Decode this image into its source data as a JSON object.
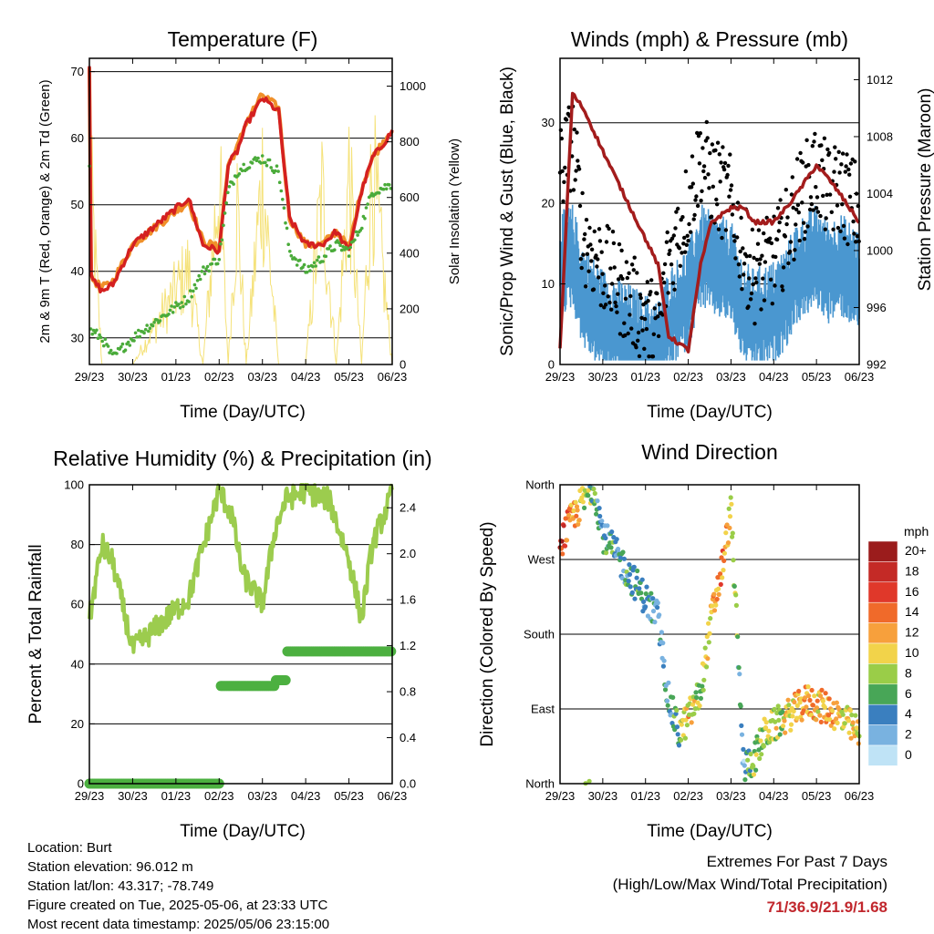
{
  "ticks_x": [
    "29/23",
    "30/23",
    "01/23",
    "02/23",
    "03/23",
    "04/23",
    "05/23",
    "06/23"
  ],
  "panels": {
    "temperature": {
      "title": "Temperature (F)",
      "ylabel_left": "2m & 9m T (Red, Orange) & 2m Td (Green)",
      "ylabel_right": "Solar Insolation (Yellow)",
      "xlabel": "Time (Day/UTC)",
      "ticks_left": [
        "30",
        "40",
        "50",
        "60",
        "70"
      ],
      "ticks_right": [
        "0",
        "200",
        "400",
        "600",
        "800",
        "1000"
      ]
    },
    "winds": {
      "title": "Winds (mph) & Pressure (mb)",
      "ylabel_left": "Sonic/Prop Wind & Gust (Blue, Black)",
      "ylabel_right": "Station Pressure (Maroon)",
      "xlabel": "Time (Day/UTC)",
      "ticks_left": [
        "0",
        "10",
        "20",
        "30"
      ],
      "ticks_right": [
        "992",
        "996",
        "1000",
        "1004",
        "1008",
        "1012"
      ]
    },
    "humidity": {
      "title": "Relative Humidity (%) & Precipitation (in)",
      "ylabel_left": "Percent & Total Rainfall",
      "xlabel": "Time (Day/UTC)",
      "ticks_left": [
        "0",
        "20",
        "40",
        "60",
        "80",
        "100"
      ],
      "ticks_right": [
        "0.0",
        "0.4",
        "0.8",
        "1.2",
        "1.6",
        "2.0",
        "2.4"
      ]
    },
    "direction": {
      "title": "Wind Direction",
      "ylabel_left": "Direction (Colored By Speed)",
      "xlabel": "Time (Day/UTC)",
      "ticks_left": [
        "North",
        "East",
        "South",
        "West",
        "North"
      ],
      "legend_title": "mph",
      "legend_labels": [
        "20+",
        "18",
        "16",
        "14",
        "12",
        "10",
        "8",
        "6",
        "4",
        "2",
        "0"
      ],
      "legend_colors": [
        "#9b1c1c",
        "#c42a26",
        "#e0382a",
        "#f06a2a",
        "#f7a03c",
        "#f2d34a",
        "#9acd48",
        "#48a657",
        "#3a7fbf",
        "#79b2e0",
        "#bfe3f6"
      ]
    }
  },
  "info": {
    "location": "Location: Burt",
    "elevation": "Station elevation: 96.012 m",
    "latlon": "Station lat/lon: 43.317; -78.749",
    "created": "Figure created on Tue, 2025-05-06, at 23:33 UTC",
    "recent": "Most recent data timestamp: 2025/05/06 23:15:00"
  },
  "extremes": {
    "line1": "Extremes For Past 7 Days",
    "line2": "(High/Low/Max Wind/Total Precipitation)",
    "values": "71/36.9/21.9/1.68"
  },
  "colors": {
    "temp2m": "#d42020",
    "temp9m": "#f0902a",
    "dewpoint": "#4aab3a",
    "solar": "#f5e27a",
    "gust": "#000000",
    "wind": "#4a97d0",
    "pressure": "#a31c1c",
    "rh": "#9ccc4e",
    "precip": "#4cb040"
  },
  "chart_data": [
    {
      "type": "line",
      "title": "Temperature (F)",
      "xlabel": "Time (Day/UTC)",
      "ylabel": "2m & 9m T (Red, Orange) & 2m Td (Green)",
      "ylabel_right": "Solar Insolation (Yellow)",
      "x": [
        "29/23",
        "29/09",
        "29/16",
        "30/00",
        "30/06",
        "30/12",
        "30/23",
        "01/06",
        "01/14",
        "01/23",
        "02/04",
        "02/09",
        "02/14",
        "02/23",
        "03/08",
        "03/14",
        "03/23",
        "04/08",
        "04/16",
        "04/23",
        "05/06",
        "05/12",
        "05/23",
        "06/06",
        "06/12",
        "06/23"
      ],
      "ylim": [
        26,
        72
      ],
      "ylim_right": [
        0,
        1100
      ],
      "series": [
        {
          "name": "2m T",
          "values": [
            71,
            60,
            45,
            39,
            37,
            38,
            44,
            51,
            44,
            43,
            56,
            58,
            62,
            66,
            64,
            48,
            44,
            44,
            46,
            43,
            52,
            57,
            61,
            62,
            55,
            59
          ]
        },
        {
          "name": "9m T",
          "values": [
            71,
            60,
            45,
            39,
            37.5,
            38.5,
            44,
            50.5,
            44.5,
            43.5,
            56,
            58.5,
            62.5,
            66.5,
            64.5,
            48,
            44,
            44,
            46,
            43.5,
            52.5,
            57,
            61.5,
            62.5,
            56,
            59
          ]
        },
        {
          "name": "2m Td",
          "values": [
            56,
            42,
            35,
            31,
            30,
            27,
            30,
            36,
            40,
            42,
            52,
            55,
            56,
            57,
            55,
            43,
            40,
            42,
            44,
            43,
            47,
            52,
            53,
            55,
            50,
            50
          ]
        },
        {
          "name": "Solar",
          "values": [
            0,
            1000,
            0,
            900,
            0,
            0,
            0,
            500,
            0,
            1000,
            0,
            850,
            0,
            1000,
            0,
            0,
            0,
            900,
            0,
            1000,
            0,
            1050,
            0,
            1100,
            0,
            950
          ]
        }
      ]
    },
    {
      "type": "scatter",
      "title": "Winds (mph) & Pressure (mb)",
      "xlabel": "Time (Day/UTC)",
      "ylabel": "Sonic/Prop Wind & Gust (Blue, Black)",
      "ylabel_right": "Station Pressure (Maroon)",
      "x": [
        "29/23",
        "30/06",
        "30/12",
        "30/23",
        "01/06",
        "01/12",
        "01/23",
        "02/06",
        "02/12",
        "02/23",
        "03/06",
        "03/12",
        "03/23",
        "04/06",
        "04/12",
        "04/23",
        "05/06",
        "05/12",
        "05/23",
        "06/06",
        "06/12",
        "06/23"
      ],
      "ylim": [
        0,
        38
      ],
      "ylim_right": [
        992,
        1013.5
      ],
      "series": [
        {
          "name": "Gust",
          "values": [
            26,
            30,
            18,
            14,
            6,
            15,
            22,
            28,
            25,
            22,
            16,
            13,
            15,
            18,
            22,
            26,
            23,
            24,
            21,
            16,
            14,
            9
          ]
        },
        {
          "name": "Wind",
          "values": [
            14,
            15,
            10,
            7,
            3,
            7,
            10,
            15,
            14,
            13,
            8,
            7,
            8,
            10,
            13,
            15,
            13,
            14,
            12,
            8,
            7,
            5
          ]
        },
        {
          "name": "Pressure",
          "values": [
            993,
            1011,
            1010,
            1007,
            999,
            994,
            993,
            999,
            1002,
            1003,
            1003,
            1002,
            1002,
            1003,
            1004,
            1006,
            1005,
            1004,
            1002,
            1002,
            1000,
            1000
          ]
        }
      ]
    },
    {
      "type": "line",
      "title": "Relative Humidity (%) & Precipitation (in)",
      "xlabel": "Time (Day/UTC)",
      "ylabel": "Percent & Total Rainfall",
      "x": [
        "29/23",
        "30/06",
        "30/12",
        "30/23",
        "01/06",
        "01/12",
        "01/23",
        "02/06",
        "02/12",
        "02/23",
        "03/06",
        "03/12",
        "03/23",
        "04/06",
        "04/12",
        "04/23",
        "05/06",
        "05/12",
        "05/23",
        "06/06",
        "06/12",
        "06/23"
      ],
      "ylim": [
        0,
        100
      ],
      "ylim_right": [
        0,
        2.6
      ],
      "series": [
        {
          "name": "RH",
          "values": [
            55,
            80,
            74,
            45,
            62,
            75,
            98,
            90,
            70,
            60,
            85,
            95,
            98,
            96,
            95,
            75,
            55,
            80,
            97,
            98,
            60,
            72
          ]
        },
        {
          "name": "Precipitation",
          "values": [
            0,
            0,
            0,
            0,
            0,
            0,
            0.85,
            0.85,
            0.85,
            0.85,
            0.9,
            1.15,
            1.15,
            1.15,
            1.15,
            1.15,
            1.15,
            1.15,
            1.6,
            1.68,
            1.68,
            1.68
          ]
        }
      ]
    },
    {
      "type": "scatter",
      "title": "Wind Direction",
      "xlabel": "Time (Day/UTC)",
      "ylabel": "Direction (Colored By Speed)",
      "categories_y": [
        "North",
        "East",
        "South",
        "West",
        "North"
      ],
      "x": [
        "29/23",
        "30/06",
        "30/12",
        "30/18",
        "30/23",
        "01/06",
        "01/12",
        "01/18",
        "01/23",
        "02/06",
        "02/12",
        "02/18",
        "02/23",
        "03/06",
        "03/12",
        "03/18",
        "03/23",
        "04/06",
        "04/12",
        "04/18",
        "04/23",
        "05/06",
        "05/12",
        "05/18",
        "05/23",
        "06/06",
        "06/12",
        "06/23"
      ],
      "series": [
        {
          "name": "Direction (deg)",
          "values": [
            290,
            320,
            340,
            360,
            300,
            200,
            100,
            60,
            80,
            110,
            200,
            260,
            330,
            20,
            30,
            60,
            70,
            80,
            90,
            100,
            95,
            90,
            80,
            70,
            60,
            40,
            250,
            30
          ]
        },
        {
          "name": "Speed (mph)",
          "values": [
            17,
            12,
            9,
            6,
            5,
            4,
            4,
            6,
            11,
            8,
            11,
            13,
            10,
            3,
            8,
            8,
            8,
            9,
            12,
            12,
            11,
            12,
            10,
            10,
            10,
            6,
            8,
            6
          ]
        }
      ]
    }
  ]
}
